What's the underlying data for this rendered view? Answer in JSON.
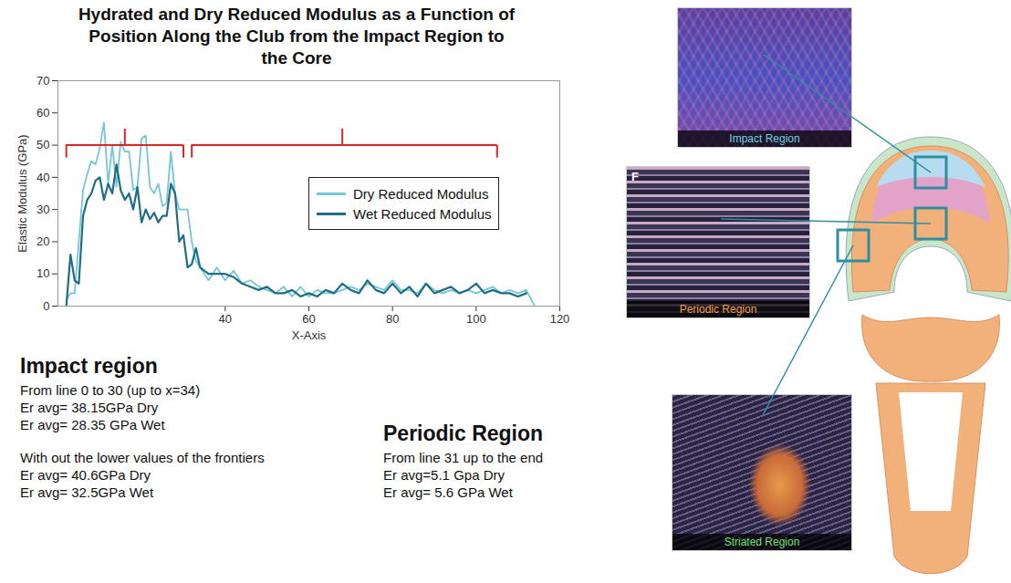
{
  "chart_data": {
    "type": "line",
    "title": "Hydrated and Dry Reduced Modulus as a Function of Position Along the Club from the Impact Region to the Core",
    "x_label": "X-Axis",
    "y_label": "Elastic Modulus (GPa)",
    "x": [
      2,
      3,
      4,
      5,
      6,
      7,
      8,
      9,
      10,
      11,
      12,
      13,
      14,
      15,
      16,
      17,
      18,
      19,
      20,
      21,
      22,
      23,
      24,
      25,
      26,
      27,
      28,
      29,
      30,
      31,
      32,
      33,
      34,
      35,
      36,
      38,
      40,
      42,
      44,
      46,
      48,
      50,
      52,
      54,
      56,
      58,
      60,
      62,
      64,
      66,
      68,
      70,
      72,
      74,
      76,
      78,
      80,
      82,
      84,
      86,
      88,
      90,
      92,
      94,
      96,
      98,
      100,
      102,
      104,
      106,
      108,
      110,
      112,
      114
    ],
    "series": [
      {
        "name": "Dry Reduced Modulus",
        "color": "#74c6d8",
        "values": [
          2,
          4,
          4,
          20,
          36,
          41,
          45,
          44,
          49,
          57,
          38,
          50,
          37,
          51,
          48,
          48,
          36,
          37,
          52,
          53,
          37,
          35,
          38,
          31,
          32,
          48,
          35,
          30,
          30,
          30,
          20,
          14,
          12,
          10,
          8,
          12,
          8,
          11,
          7,
          8,
          6,
          5,
          4,
          6,
          3,
          6,
          3,
          5,
          4,
          4,
          5,
          6,
          5,
          7,
          6,
          5,
          8,
          5,
          5,
          4,
          7,
          5,
          4,
          5,
          4,
          5,
          4,
          5,
          6,
          4,
          5,
          4,
          5,
          0
        ]
      },
      {
        "name": "Wet Reduced Modulus",
        "color": "#1f6e86",
        "values": [
          0,
          16,
          8,
          7,
          28,
          33,
          35,
          39,
          40,
          33,
          38,
          35,
          44,
          36,
          33,
          35,
          30,
          37,
          26,
          30,
          27,
          29,
          26,
          28,
          28,
          38,
          35,
          20,
          22,
          12,
          13,
          18,
          12,
          11,
          10,
          10,
          10,
          9,
          7,
          6,
          5,
          6,
          4,
          4,
          5,
          3,
          4,
          3,
          5,
          4,
          7,
          5,
          4,
          8,
          5,
          4,
          7,
          4,
          6,
          3,
          7,
          4,
          5,
          6,
          4,
          5,
          7,
          4,
          5,
          4,
          4,
          3,
          4,
          null
        ]
      }
    ],
    "xlim": [
      0,
      120
    ],
    "xticks": [
      40,
      60,
      80,
      100,
      120
    ],
    "ylim": [
      0,
      70
    ],
    "yticks": [
      0,
      10,
      20,
      30,
      40,
      50,
      60,
      70
    ],
    "grid": false,
    "legend": "top-right",
    "brackets": [
      {
        "from": 2,
        "to": 30,
        "mid": 16,
        "y": 50,
        "top": 55,
        "bottom": 46,
        "color": "#e02424"
      },
      {
        "from": 32,
        "to": 105,
        "mid": 68,
        "y": 50,
        "top": 55,
        "bottom": 46,
        "color": "#e02424"
      }
    ]
  },
  "text_blocks": [
    {
      "heading": "Impact region",
      "lines": [
        "From line 0 to 30 (up to x=34)",
        "Er avg= 38.15GPa  Dry",
        "Er avg= 28.35 GPa Wet"
      ],
      "subheading": "With out the lower values of the frontiers",
      "sublines": [
        "Er avg= 40.6GPa  Dry",
        "Er avg= 32.5GPa Wet"
      ]
    },
    {
      "heading": "Periodic Region",
      "lines": [
        "From line 31 up to the end",
        "Er avg=5.1 Gpa Dry",
        "Er avg= 5.6 GPa Wet"
      ]
    }
  ],
  "images": [
    {
      "label": "Impact Region"
    },
    {
      "label": "Periodic Region",
      "letter": "F"
    },
    {
      "label": "Striated Region"
    }
  ]
}
